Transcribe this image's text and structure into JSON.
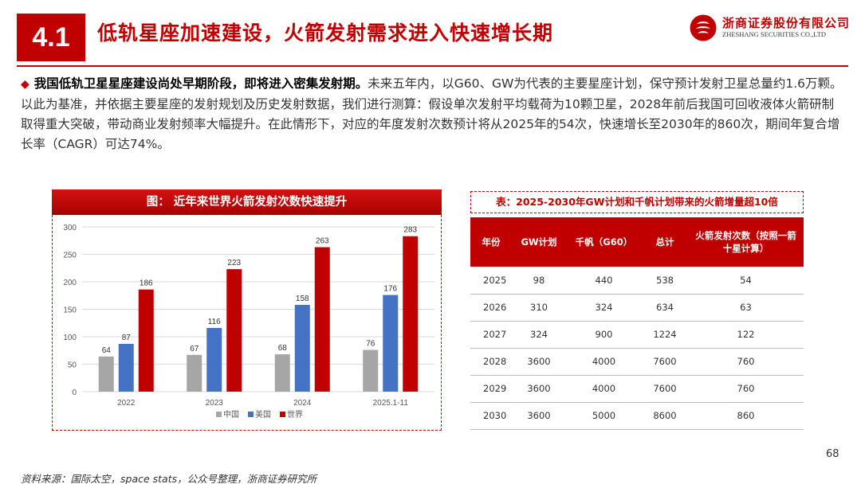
{
  "header": {
    "section_number": "4.1",
    "title": "低轨星座加速建设，火箭发射需求进入快速增长期",
    "logo_cn": "浙商证券股份有限公司",
    "logo_en": "ZHESHANG SECURITIES CO.,LTD"
  },
  "summary": {
    "lead": "我国低轨卫星星座建设尚处早期阶段，即将进入密集发射期。",
    "body": "未来五年内，以G60、GW为代表的主要星座计划，保守预计发射卫星总量约1.6万颗。以此为基准，并依据主要星座的发射规划及历史发射数据，我们进行测算：假设单次发射平均载荷为10颗卫星，2028年前后我国可回收液体火箭研制取得重大突破，带动商业发射频率大幅提升。在此情形下，对应的年度发射次数预计将从2025年的54次，快速增长至2030年的860次，期间年复合增长率（CAGR）可达74%。"
  },
  "chart_data": {
    "type": "bar",
    "title": "图：  近年来世界火箭发射次数快速提升",
    "categories": [
      "2022",
      "2023",
      "2024",
      "2025.1-11"
    ],
    "series": [
      {
        "name": "中国",
        "color": "#a6a6a6",
        "values": [
          64,
          67,
          68,
          76
        ]
      },
      {
        "name": "美国",
        "color": "#4472c4",
        "values": [
          87,
          116,
          158,
          176
        ]
      },
      {
        "name": "世界",
        "color": "#c00000",
        "values": [
          186,
          223,
          263,
          283
        ]
      }
    ],
    "ylim": [
      0,
      300
    ],
    "yticks": [
      "0",
      "50",
      "100",
      "150",
      "200",
      "250",
      "300"
    ],
    "grid": true,
    "legend": "bottom"
  },
  "table": {
    "title": "表：2025-2030年GW计划和千帆计划带来的火箭增量超10倍",
    "headers": [
      "年份",
      "GW计划",
      "千帆（G60）",
      "总计",
      "火箭发射次数（按照一箭十星计算）"
    ],
    "rows": [
      [
        "2025",
        "98",
        "440",
        "538",
        "54"
      ],
      [
        "2026",
        "310",
        "324",
        "634",
        "63"
      ],
      [
        "2027",
        "324",
        "900",
        "1224",
        "122"
      ],
      [
        "2028",
        "3600",
        "4000",
        "7600",
        "760"
      ],
      [
        "2029",
        "3600",
        "4000",
        "7600",
        "760"
      ],
      [
        "2030",
        "3600",
        "5000",
        "8600",
        "860"
      ]
    ]
  },
  "footer": {
    "page_number": "68",
    "source": "资料来源：国际太空，space stats，公众号整理，浙商证券研究所"
  },
  "colors": {
    "accent": "#c00000",
    "china": "#a6a6a6",
    "usa": "#4472c4",
    "world": "#c00000"
  }
}
